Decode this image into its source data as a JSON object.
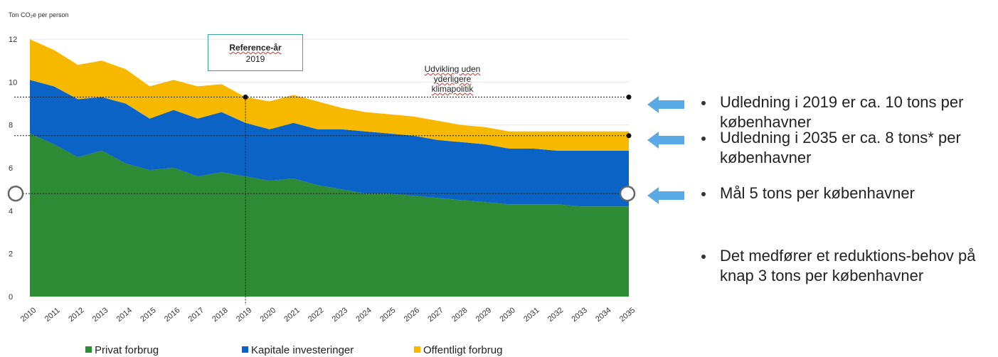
{
  "chart_data": {
    "type": "area",
    "stacked": true,
    "ylabel": "Ton CO₂e per person",
    "ylim": [
      0,
      12.5
    ],
    "yticks": [
      "0",
      "2",
      "4",
      "6",
      "8",
      "10",
      "12"
    ],
    "x": [
      "2010",
      "2011",
      "2012",
      "2013",
      "2014",
      "2015",
      "2016",
      "2017",
      "2018",
      "2019",
      "2020",
      "2021",
      "2022",
      "2023",
      "2024",
      "2025",
      "2026",
      "2027",
      "2028",
      "2029",
      "2030",
      "2031",
      "2032",
      "2033",
      "2034",
      "2035"
    ],
    "series": [
      {
        "name": "Privat forbrug",
        "color": "#2e8b35",
        "values": [
          7.6,
          7.1,
          6.5,
          6.8,
          6.2,
          5.9,
          6.0,
          5.6,
          5.8,
          5.6,
          5.4,
          5.5,
          5.2,
          5.0,
          4.8,
          4.8,
          4.7,
          4.6,
          4.5,
          4.4,
          4.3,
          4.3,
          4.3,
          4.2,
          4.2,
          4.2
        ]
      },
      {
        "name": "Kapitale investeringer",
        "color": "#0b63c5",
        "values": [
          2.5,
          2.7,
          2.7,
          2.5,
          2.8,
          2.4,
          2.7,
          2.7,
          2.8,
          2.5,
          2.4,
          2.6,
          2.6,
          2.8,
          2.9,
          2.8,
          2.8,
          2.7,
          2.7,
          2.7,
          2.6,
          2.6,
          2.5,
          2.6,
          2.6,
          2.6
        ]
      },
      {
        "name": "Offentligt forbrug",
        "color": "#f7b800",
        "values": [
          1.9,
          1.7,
          1.6,
          1.7,
          1.6,
          1.5,
          1.4,
          1.5,
          1.3,
          1.2,
          1.3,
          1.3,
          1.3,
          1.0,
          0.9,
          0.9,
          0.9,
          0.9,
          0.8,
          0.8,
          0.8,
          0.8,
          0.9,
          0.9,
          0.9,
          0.9
        ]
      }
    ],
    "reference_lines": [
      {
        "y": 9.3,
        "marker_years": [
          "2019",
          "2035"
        ]
      },
      {
        "y": 7.5,
        "marker_years": [
          "2035"
        ]
      },
      {
        "y": 4.8,
        "open_markers": true
      }
    ],
    "reference_year": "2019",
    "ref_box": {
      "title": "Reference-år",
      "year": "2019"
    },
    "scenario_label": [
      "Udvikling uden",
      "yderligere",
      "klimapolitik"
    ],
    "legend_position": "bottom",
    "grid": "horizontal"
  },
  "bullets": [
    {
      "text": "Udledning i 2019 er ca. 10 tons per københavner",
      "arrow": true
    },
    {
      "text": "Udledning i 2035 er ca. 8 tons* per københavner",
      "arrow": true
    },
    {
      "text": "Mål 5 tons per københavner",
      "arrow": true
    },
    {
      "text": "Det medfører et reduktions-behov på knap 3 tons per københavner",
      "arrow": false
    }
  ],
  "colors": {
    "arrow": "#5aaae8",
    "grid": "#e6e6e6",
    "ref_line": "#222222"
  }
}
